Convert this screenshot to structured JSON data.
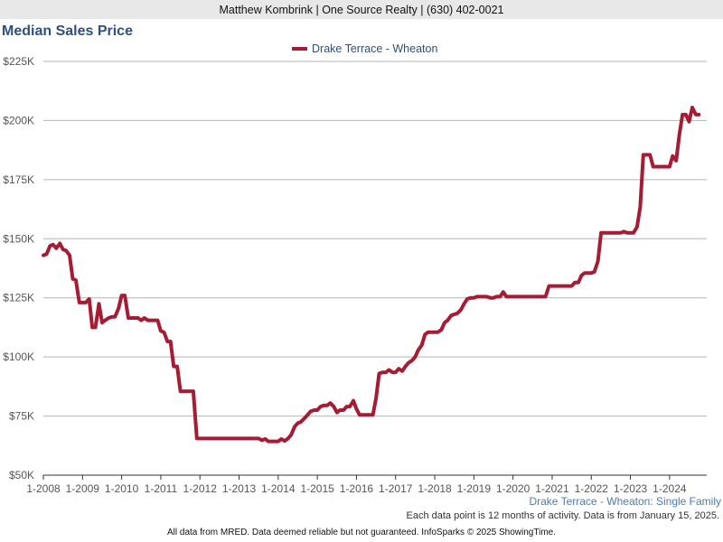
{
  "header": {
    "contact": "Matthew Kombrink | One Source Realty | (630) 402-0021"
  },
  "chart_data": {
    "type": "line",
    "title": "Median Sales Price",
    "xlabel": "",
    "ylabel": "",
    "ylim": [
      50000,
      225000
    ],
    "xlim": [
      2008.0,
      2024.95
    ],
    "y_ticks": [
      {
        "value": 50000,
        "label": "$50K"
      },
      {
        "value": 75000,
        "label": "$75K"
      },
      {
        "value": 100000,
        "label": "$100K"
      },
      {
        "value": 125000,
        "label": "$125K"
      },
      {
        "value": 150000,
        "label": "$150K"
      },
      {
        "value": 175000,
        "label": "$175K"
      },
      {
        "value": 200000,
        "label": "$200K"
      },
      {
        "value": 225000,
        "label": "$225K"
      }
    ],
    "x_ticks": [
      {
        "value": 2008,
        "label": "1-2008"
      },
      {
        "value": 2009,
        "label": "1-2009"
      },
      {
        "value": 2010,
        "label": "1-2010"
      },
      {
        "value": 2011,
        "label": "1-2011"
      },
      {
        "value": 2012,
        "label": "1-2012"
      },
      {
        "value": 2013,
        "label": "1-2013"
      },
      {
        "value": 2014,
        "label": "1-2014"
      },
      {
        "value": 2015,
        "label": "1-2015"
      },
      {
        "value": 2016,
        "label": "1-2016"
      },
      {
        "value": 2017,
        "label": "1-2017"
      },
      {
        "value": 2018,
        "label": "1-2018"
      },
      {
        "value": 2019,
        "label": "1-2019"
      },
      {
        "value": 2020,
        "label": "1-2020"
      },
      {
        "value": 2021,
        "label": "1-2021"
      },
      {
        "value": 2022,
        "label": "1-2022"
      },
      {
        "value": 2023,
        "label": "1-2023"
      },
      {
        "value": 2024,
        "label": "1-2024"
      }
    ],
    "series": [
      {
        "name": "Drake Terrace - Wheaton",
        "color": "#a61c35",
        "points": [
          [
            2008.0,
            143000
          ],
          [
            2008.08,
            143500
          ],
          [
            2008.17,
            147000
          ],
          [
            2008.25,
            147500
          ],
          [
            2008.33,
            146000
          ],
          [
            2008.42,
            148000
          ],
          [
            2008.5,
            145500
          ],
          [
            2008.58,
            145000
          ],
          [
            2008.67,
            143000
          ],
          [
            2008.75,
            133000
          ],
          [
            2008.83,
            132500
          ],
          [
            2008.92,
            123000
          ],
          [
            2009.0,
            123000
          ],
          [
            2009.08,
            123000
          ],
          [
            2009.17,
            124500
          ],
          [
            2009.25,
            112500
          ],
          [
            2009.33,
            112500
          ],
          [
            2009.42,
            122500
          ],
          [
            2009.5,
            114500
          ],
          [
            2009.58,
            115500
          ],
          [
            2009.67,
            116500
          ],
          [
            2009.75,
            117000
          ],
          [
            2009.83,
            117000
          ],
          [
            2009.92,
            120500
          ],
          [
            2010.0,
            126000
          ],
          [
            2010.08,
            126000
          ],
          [
            2010.17,
            116500
          ],
          [
            2010.25,
            116500
          ],
          [
            2010.33,
            116500
          ],
          [
            2010.42,
            116500
          ],
          [
            2010.5,
            115500
          ],
          [
            2010.58,
            116500
          ],
          [
            2010.67,
            115500
          ],
          [
            2010.75,
            115500
          ],
          [
            2010.83,
            115500
          ],
          [
            2010.92,
            115500
          ],
          [
            2011.0,
            111000
          ],
          [
            2011.08,
            110500
          ],
          [
            2011.17,
            106500
          ],
          [
            2011.25,
            106500
          ],
          [
            2011.33,
            96000
          ],
          [
            2011.42,
            96000
          ],
          [
            2011.5,
            85500
          ],
          [
            2011.58,
            85500
          ],
          [
            2011.67,
            85500
          ],
          [
            2011.75,
            85500
          ],
          [
            2011.83,
            85500
          ],
          [
            2011.92,
            65500
          ],
          [
            2012.0,
            65500
          ],
          [
            2012.5,
            65500
          ],
          [
            2013.0,
            65500
          ],
          [
            2013.5,
            65500
          ],
          [
            2013.58,
            64800
          ],
          [
            2013.67,
            65300
          ],
          [
            2013.75,
            64300
          ],
          [
            2013.83,
            64300
          ],
          [
            2013.92,
            64300
          ],
          [
            2014.0,
            64300
          ],
          [
            2014.08,
            65300
          ],
          [
            2014.17,
            64500
          ],
          [
            2014.25,
            65500
          ],
          [
            2014.33,
            67000
          ],
          [
            2014.42,
            70500
          ],
          [
            2014.5,
            72000
          ],
          [
            2014.58,
            72500
          ],
          [
            2014.67,
            74000
          ],
          [
            2014.75,
            75500
          ],
          [
            2014.83,
            77000
          ],
          [
            2014.92,
            77500
          ],
          [
            2015.0,
            77500
          ],
          [
            2015.08,
            79000
          ],
          [
            2015.17,
            79500
          ],
          [
            2015.25,
            79500
          ],
          [
            2015.33,
            80500
          ],
          [
            2015.42,
            79000
          ],
          [
            2015.5,
            76500
          ],
          [
            2015.58,
            77500
          ],
          [
            2015.67,
            77500
          ],
          [
            2015.75,
            79000
          ],
          [
            2015.83,
            79000
          ],
          [
            2015.92,
            81500
          ],
          [
            2016.0,
            78000
          ],
          [
            2016.08,
            75500
          ],
          [
            2016.17,
            75500
          ],
          [
            2016.25,
            75500
          ],
          [
            2016.33,
            75500
          ],
          [
            2016.42,
            75500
          ],
          [
            2016.5,
            82500
          ],
          [
            2016.58,
            93000
          ],
          [
            2016.67,
            93500
          ],
          [
            2016.75,
            93500
          ],
          [
            2016.83,
            94500
          ],
          [
            2016.92,
            93500
          ],
          [
            2017.0,
            93500
          ],
          [
            2017.08,
            95000
          ],
          [
            2017.17,
            94000
          ],
          [
            2017.25,
            96000
          ],
          [
            2017.33,
            97500
          ],
          [
            2017.42,
            98500
          ],
          [
            2017.5,
            100000
          ],
          [
            2017.58,
            103000
          ],
          [
            2017.67,
            105000
          ],
          [
            2017.75,
            109500
          ],
          [
            2017.83,
            110500
          ],
          [
            2017.92,
            110500
          ],
          [
            2018.0,
            110500
          ],
          [
            2018.08,
            110500
          ],
          [
            2018.17,
            111500
          ],
          [
            2018.25,
            114500
          ],
          [
            2018.33,
            115500
          ],
          [
            2018.42,
            117500
          ],
          [
            2018.5,
            118000
          ],
          [
            2018.58,
            118500
          ],
          [
            2018.67,
            120000
          ],
          [
            2018.75,
            122500
          ],
          [
            2018.83,
            124500
          ],
          [
            2018.92,
            125000
          ],
          [
            2019.0,
            125000
          ],
          [
            2019.08,
            125500
          ],
          [
            2019.17,
            125500
          ],
          [
            2019.25,
            125500
          ],
          [
            2019.33,
            125500
          ],
          [
            2019.42,
            125000
          ],
          [
            2019.5,
            125000
          ],
          [
            2019.58,
            125500
          ],
          [
            2019.67,
            125500
          ],
          [
            2019.75,
            127500
          ],
          [
            2019.83,
            125500
          ],
          [
            2019.92,
            125500
          ],
          [
            2020.0,
            125500
          ],
          [
            2020.5,
            125500
          ],
          [
            2020.83,
            125500
          ],
          [
            2020.92,
            130000
          ],
          [
            2021.0,
            130000
          ],
          [
            2021.08,
            130000
          ],
          [
            2021.17,
            130000
          ],
          [
            2021.25,
            130000
          ],
          [
            2021.33,
            130000
          ],
          [
            2021.42,
            130000
          ],
          [
            2021.5,
            130000
          ],
          [
            2021.58,
            131500
          ],
          [
            2021.67,
            131500
          ],
          [
            2021.75,
            134500
          ],
          [
            2021.83,
            135500
          ],
          [
            2021.92,
            135500
          ],
          [
            2022.0,
            135500
          ],
          [
            2022.08,
            136000
          ],
          [
            2022.17,
            140500
          ],
          [
            2022.25,
            152500
          ],
          [
            2022.33,
            152500
          ],
          [
            2022.42,
            152500
          ],
          [
            2022.5,
            152500
          ],
          [
            2022.58,
            152500
          ],
          [
            2022.67,
            152500
          ],
          [
            2022.75,
            152500
          ],
          [
            2022.83,
            153000
          ],
          [
            2022.92,
            152500
          ],
          [
            2023.0,
            152500
          ],
          [
            2023.08,
            152500
          ],
          [
            2023.17,
            155000
          ],
          [
            2023.25,
            163500
          ],
          [
            2023.33,
            185500
          ],
          [
            2023.42,
            185500
          ],
          [
            2023.5,
            185500
          ],
          [
            2023.58,
            180500
          ],
          [
            2023.67,
            180500
          ],
          [
            2023.75,
            180500
          ],
          [
            2023.83,
            180500
          ],
          [
            2023.92,
            180500
          ],
          [
            2024.0,
            180500
          ],
          [
            2024.08,
            185000
          ],
          [
            2024.17,
            183000
          ],
          [
            2024.25,
            194000
          ],
          [
            2024.33,
            202500
          ],
          [
            2024.42,
            202500
          ],
          [
            2024.5,
            199500
          ],
          [
            2024.58,
            205500
          ],
          [
            2024.67,
            202500
          ],
          [
            2024.75,
            202500
          ]
        ]
      }
    ],
    "legend_position": "top-center",
    "grid": true
  },
  "footer": {
    "series_label": "Drake Terrace - Wheaton: Single Family",
    "note": "Each data point is 12 months of activity. Data is from January 15, 2025.",
    "disclaimer": "All data from MRED. Data deemed reliable but not guaranteed. InfoSparks © 2025 ShowingTime."
  }
}
